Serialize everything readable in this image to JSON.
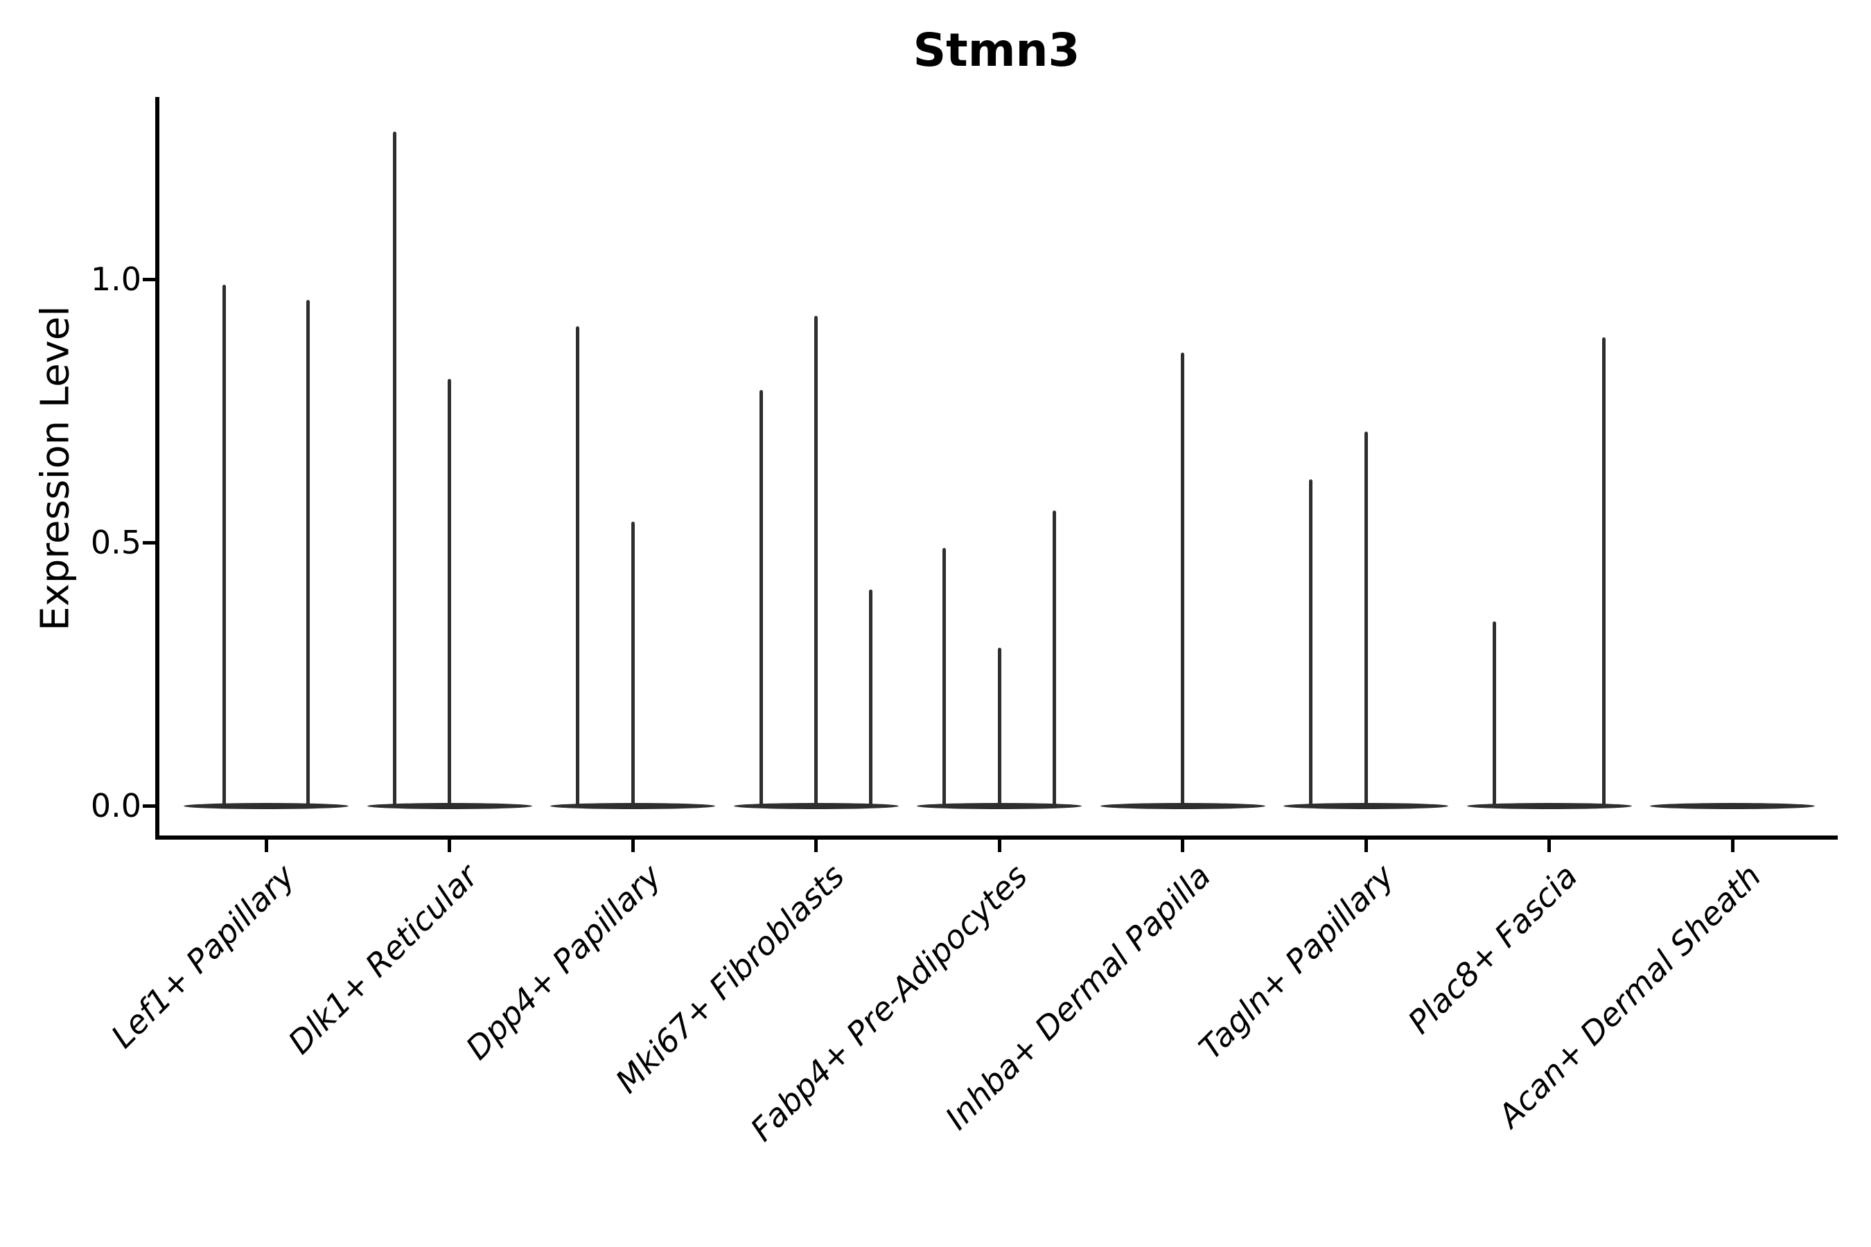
{
  "chart_data": {
    "type": "violin",
    "title": "Stmn3",
    "ylabel": "Expression Level",
    "xlabel": "",
    "grid": false,
    "legend": "none",
    "ylim": [
      -0.06,
      1.33
    ],
    "yticks": [
      {
        "value": 0.0,
        "label": "0.0"
      },
      {
        "value": 0.5,
        "label": "0.5"
      },
      {
        "value": 1.0,
        "label": "1.0"
      }
    ],
    "note": "Violin plot of gene expression; each cell type shows a flat density base at 0 with thin spikes to the maximum expressed values",
    "categories": [
      {
        "label": "Lef1+ Papillary",
        "spikes": [
          {
            "dx": -0.23,
            "value": 0.99
          },
          {
            "dx": 0.23,
            "value": 0.96
          }
        ]
      },
      {
        "label": "Dlk1+ Reticular",
        "spikes": [
          {
            "dx": -0.3,
            "value": 1.28
          },
          {
            "dx": 0.0,
            "value": 0.81
          }
        ]
      },
      {
        "label": "Dpp4+ Papillary",
        "spikes": [
          {
            "dx": -0.3,
            "value": 0.91
          },
          {
            "dx": 0.0,
            "value": 0.54
          }
        ]
      },
      {
        "label": "Mki67+ Fibroblasts",
        "spikes": [
          {
            "dx": -0.3,
            "value": 0.79
          },
          {
            "dx": 0.0,
            "value": 0.93
          },
          {
            "dx": 0.3,
            "value": 0.41
          }
        ]
      },
      {
        "label": "Fabp4+ Pre-Adipocytes",
        "spikes": [
          {
            "dx": -0.3,
            "value": 0.49
          },
          {
            "dx": 0.0,
            "value": 0.3
          },
          {
            "dx": 0.3,
            "value": 0.56
          }
        ]
      },
      {
        "label": "Inhba+ Dermal Papilla",
        "spikes": [
          {
            "dx": 0.0,
            "value": 0.86
          }
        ]
      },
      {
        "label": "Tagln+ Papillary",
        "spikes": [
          {
            "dx": -0.3,
            "value": 0.62
          },
          {
            "dx": 0.0,
            "value": 0.71
          }
        ]
      },
      {
        "label": "Plac8+ Fascia",
        "spikes": [
          {
            "dx": -0.3,
            "value": 0.35
          },
          {
            "dx": 0.3,
            "value": 0.89
          }
        ]
      },
      {
        "label": "Acan+ Dermal Sheath",
        "spikes": []
      }
    ],
    "colors": {
      "violin": "#2e2e2e",
      "axis": "#000000",
      "text": "#000000",
      "background": "#ffffff"
    }
  }
}
